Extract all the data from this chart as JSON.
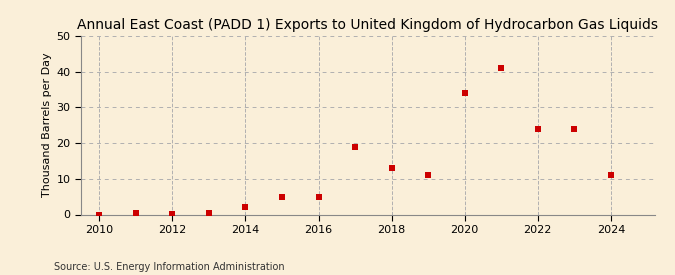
{
  "title": "Annual East Coast (PADD 1) Exports to United Kingdom of Hydrocarbon Gas Liquids",
  "ylabel": "Thousand Barrels per Day",
  "source": "Source: U.S. Energy Information Administration",
  "background_color": "#faefd9",
  "marker_color": "#cc0000",
  "years": [
    2010,
    2011,
    2012,
    2013,
    2014,
    2015,
    2016,
    2017,
    2018,
    2019,
    2020,
    2021,
    2022,
    2023,
    2024
  ],
  "values": [
    0.0,
    0.3,
    0.2,
    0.5,
    2.0,
    5.0,
    5.0,
    19.0,
    13.0,
    11.0,
    34.0,
    41.0,
    24.0,
    24.0,
    11.0
  ],
  "xlim": [
    2009.5,
    2025.2
  ],
  "ylim": [
    0,
    50
  ],
  "yticks": [
    0,
    10,
    20,
    30,
    40,
    50
  ],
  "xticks": [
    2010,
    2012,
    2014,
    2016,
    2018,
    2020,
    2022,
    2024
  ],
  "grid_color": "#b0b0b0",
  "title_fontsize": 10,
  "label_fontsize": 8,
  "tick_fontsize": 8,
  "source_fontsize": 7
}
